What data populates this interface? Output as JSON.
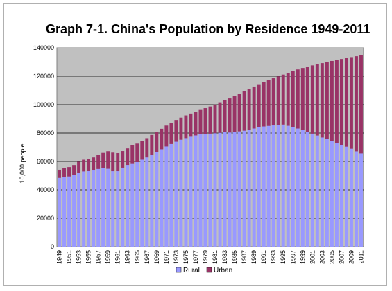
{
  "chart_data": {
    "type": "bar",
    "stacked": true,
    "title": "Graph 7-1. China's Population by Residence 1949-2011",
    "ylabel": "10,000 people",
    "xlabel": "",
    "ylim": [
      0,
      140000
    ],
    "yticks": [
      0,
      20000,
      40000,
      60000,
      80000,
      100000,
      120000,
      140000
    ],
    "grid": true,
    "legend_position": "bottom",
    "x": [
      1949,
      1950,
      1951,
      1952,
      1953,
      1954,
      1955,
      1956,
      1957,
      1958,
      1959,
      1960,
      1961,
      1962,
      1963,
      1964,
      1965,
      1966,
      1967,
      1968,
      1969,
      1970,
      1971,
      1972,
      1973,
      1974,
      1975,
      1976,
      1977,
      1978,
      1979,
      1980,
      1981,
      1982,
      1983,
      1984,
      1985,
      1986,
      1987,
      1988,
      1989,
      1990,
      1991,
      1992,
      1993,
      1994,
      1995,
      1996,
      1997,
      1998,
      1999,
      2000,
      2001,
      2002,
      2003,
      2004,
      2005,
      2006,
      2007,
      2008,
      2009,
      2010,
      2011
    ],
    "xtick_labels": [
      "1949",
      "1951",
      "1953",
      "1955",
      "1957",
      "1959",
      "1961",
      "1963",
      "1965",
      "1967",
      "1969",
      "1971",
      "1973",
      "1975",
      "1977",
      "1979",
      "1981",
      "1983",
      "1985",
      "1987",
      "1989",
      "1991",
      "1993",
      "1995",
      "1997",
      "1999",
      "2001",
      "2003",
      "2005",
      "2007",
      "2009",
      "2011"
    ],
    "series": [
      {
        "name": "Rural",
        "color": "#9999ff",
        "values": [
          48402,
          49106,
          49408,
          50319,
          51970,
          52970,
          53180,
          53643,
          54704,
          55273,
          54836,
          53134,
          53152,
          55636,
          57526,
          58705,
          59493,
          61229,
          62820,
          64784,
          66554,
          68568,
          70518,
          72242,
          73866,
          75264,
          76390,
          77376,
          78305,
          79014,
          79047,
          79565,
          79901,
          80174,
          80734,
          80340,
          80757,
          81141,
          81626,
          82365,
          83164,
          84138,
          84620,
          84996,
          85344,
          85681,
          85947,
          85085,
          84177,
          83153,
          82038,
          80837,
          79563,
          78241,
          76851,
          75705,
          74544,
          73160,
          71496,
          70399,
          68938,
          67113,
          65656
        ]
      },
      {
        "name": "Urban",
        "color": "#993366",
        "values": [
          5765,
          6169,
          6632,
          7163,
          7826,
          8249,
          8285,
          9185,
          9949,
          10721,
          12371,
          13073,
          12707,
          11659,
          11646,
          12950,
          13045,
          13313,
          13548,
          13838,
          14117,
          14424,
          14711,
          14935,
          15345,
          15595,
          16030,
          16341,
          16669,
          17245,
          18495,
          19140,
          20171,
          21480,
          22274,
          24017,
          25094,
          26366,
          27674,
          28661,
          29540,
          30195,
          31203,
          32175,
          33173,
          34169,
          35174,
          37304,
          39449,
          41608,
          43748,
          45906,
          48064,
          50212,
          52376,
          54283,
          56212,
          58288,
          60633,
          62403,
          64512,
          66978,
          69079
        ]
      }
    ]
  }
}
